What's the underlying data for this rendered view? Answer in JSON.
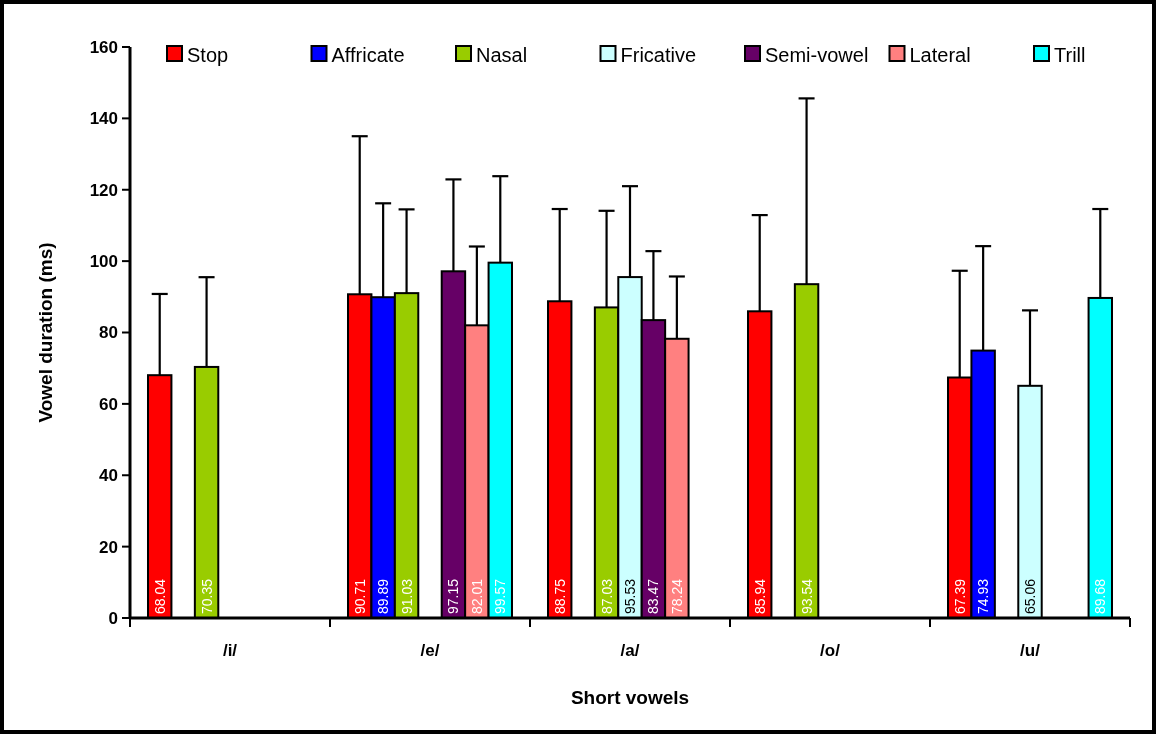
{
  "chart_data": {
    "type": "bar",
    "xlabel": "Short vowels",
    "ylabel": "Vowel duration (ms)",
    "categories": [
      "/i/",
      "/e/",
      "/a/",
      "/o/",
      "/u/"
    ],
    "series": [
      {
        "name": "Stop",
        "color": "#ff0000",
        "values": [
          68.04,
          90.71,
          88.75,
          85.94,
          67.39
        ],
        "errors": [
          [
            68.04,
            90.8
          ],
          [
            90.71,
            135.0
          ],
          [
            88.75,
            114.6
          ],
          [
            85.94,
            112.9
          ],
          [
            67.39,
            97.3
          ]
        ]
      },
      {
        "name": "Affricate",
        "color": "#0000ff",
        "values": [
          null,
          89.89,
          null,
          null,
          74.93
        ],
        "errors": [
          null,
          [
            89.89,
            116.2
          ],
          null,
          null,
          [
            74.93,
            104.2
          ]
        ]
      },
      {
        "name": "Nasal",
        "color": "#99cc00",
        "values": [
          70.35,
          91.03,
          87.03,
          93.54,
          null
        ],
        "errors": [
          [
            70.35,
            95.5
          ],
          [
            91.03,
            114.5
          ],
          [
            87.03,
            114.1
          ],
          [
            93.54,
            145.6
          ],
          null
        ]
      },
      {
        "name": "Fricative",
        "color": "#ccffff",
        "values": [
          null,
          null,
          95.53,
          null,
          65.06
        ],
        "errors": [
          null,
          null,
          [
            95.53,
            121.0
          ],
          null,
          [
            65.06,
            86.2
          ]
        ]
      },
      {
        "name": "Semi-vowel",
        "color": "#660066",
        "values": [
          null,
          97.15,
          83.47,
          null,
          null
        ],
        "errors": [
          null,
          [
            97.15,
            122.9
          ],
          [
            83.47,
            102.8
          ],
          null,
          null
        ]
      },
      {
        "name": "Lateral",
        "color": "#ff8080",
        "values": [
          null,
          82.01,
          78.24,
          null,
          null
        ],
        "errors": [
          null,
          [
            82.01,
            104.1
          ],
          [
            78.24,
            95.7
          ],
          null,
          null
        ]
      },
      {
        "name": "Trill",
        "color": "#00ffff",
        "values": [
          null,
          99.57,
          null,
          null,
          89.68
        ],
        "errors": [
          null,
          [
            99.57,
            123.8
          ],
          null,
          null,
          [
            89.68,
            114.6
          ]
        ]
      }
    ],
    "ylim": [
      0,
      160
    ],
    "yticks": [
      0,
      20,
      40,
      60,
      80,
      100,
      120,
      140,
      160
    ],
    "data_labels": true,
    "legend": "top",
    "grid": false
  }
}
